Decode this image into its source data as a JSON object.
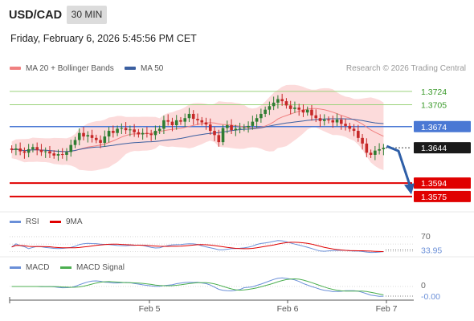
{
  "header": {
    "pair": "USD/CAD",
    "timeframe": "30 MIN",
    "datetime": "Friday, February 6, 2026 5:45:56 PM CET",
    "credit": "Research © 2026 Trading Central"
  },
  "legend": {
    "ma20": "MA 20 + Bollinger Bands",
    "ma50": "MA 50",
    "rsi": "RSI",
    "ma9": "9MA",
    "macd": "MACD",
    "macd_signal": "MACD Signal"
  },
  "colors": {
    "candle_up": "#2e7d32",
    "candle_down": "#c62828",
    "bollinger_fill": "#fbd5d5",
    "ma20": "#f08080",
    "ma50": "#3b5fa0",
    "level_green": "#9bd27b",
    "level_blue": "#4a78d4",
    "level_red": "#e00000",
    "arrow": "#2f5fa8",
    "rsi": "#6a8fd8",
    "ma9": "#e00000",
    "macd": "#6a8fd8",
    "macd_signal": "#4caf50"
  },
  "chart_data": [
    {
      "type": "candlestick",
      "title": "USD/CAD 30 MIN",
      "ylim": [
        1.356,
        1.3742
      ],
      "x_labels": [
        "Feb 5",
        "Feb 6",
        "Feb 7"
      ],
      "levels": [
        {
          "value": 1.3724,
          "label": "1.3724",
          "kind": "resistance"
        },
        {
          "value": 1.3705,
          "label": "1.3705",
          "kind": "resistance"
        },
        {
          "value": 1.3674,
          "label": "1.3674",
          "kind": "pivot"
        },
        {
          "value": 1.3644,
          "label": "1.3644",
          "kind": "last"
        },
        {
          "value": 1.3594,
          "label": "1.3594",
          "kind": "support"
        },
        {
          "value": 1.3575,
          "label": "1.3575",
          "kind": "support"
        }
      ],
      "close_prices": [
        1.3641,
        1.3643,
        1.3639,
        1.3637,
        1.3642,
        1.3645,
        1.3641,
        1.3638,
        1.3639,
        1.3636,
        1.3633,
        1.3635,
        1.3634,
        1.3638,
        1.3648,
        1.3655,
        1.3665,
        1.366,
        1.3662,
        1.3658,
        1.3655,
        1.3651,
        1.366,
        1.3668,
        1.3665,
        1.3671,
        1.3672,
        1.3669,
        1.367,
        1.3666,
        1.3663,
        1.3665,
        1.3664,
        1.3662,
        1.3668,
        1.3671,
        1.3683,
        1.3681,
        1.3676,
        1.3683,
        1.3681,
        1.3686,
        1.3692,
        1.3685,
        1.3683,
        1.368,
        1.3677,
        1.3668,
        1.3662,
        1.3652,
        1.3672,
        1.3676,
        1.3669,
        1.3671,
        1.3672,
        1.3673,
        1.3675,
        1.3681,
        1.3686,
        1.3692,
        1.3698,
        1.3703,
        1.3708,
        1.3713,
        1.371,
        1.3704,
        1.3699,
        1.3701,
        1.3698,
        1.3694,
        1.3698,
        1.369,
        1.3686,
        1.3682,
        1.3684,
        1.3683,
        1.368,
        1.3684,
        1.3678,
        1.3675,
        1.3671,
        1.3668,
        1.3658,
        1.365,
        1.3637,
        1.3634,
        1.364,
        1.3642,
        1.3644
      ],
      "ma20_end": 1.366,
      "ma50_end": 1.3676
    },
    {
      "type": "line",
      "title": "RSI",
      "ylim": [
        20,
        85
      ],
      "ticks": [
        "70"
      ],
      "value_label": "33.95",
      "series": [
        {
          "name": "RSI"
        },
        {
          "name": "9MA"
        }
      ]
    },
    {
      "type": "line",
      "title": "MACD",
      "ticks": [
        "0"
      ],
      "value_label": "-0.00",
      "series": [
        {
          "name": "MACD"
        },
        {
          "name": "MACD Signal"
        }
      ]
    }
  ]
}
